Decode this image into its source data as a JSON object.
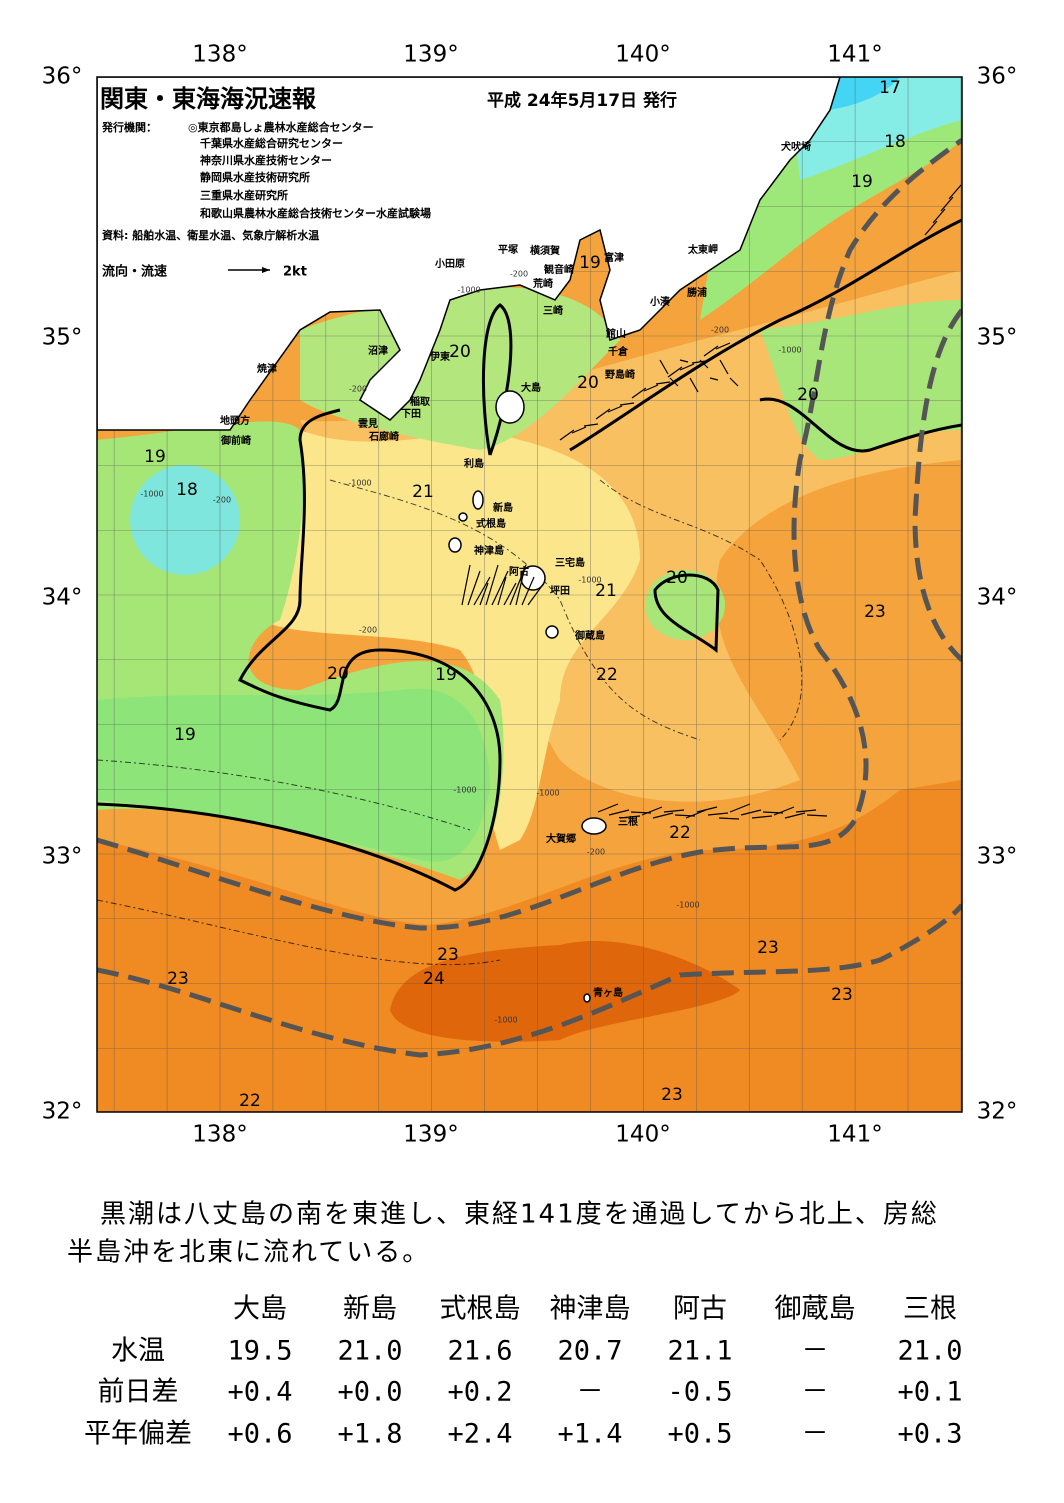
{
  "header": {
    "title": "関東・東海海況速報",
    "date": "平成 24年5月17日 発行",
    "issuer_label": "発行機関：",
    "issuers": [
      "◎東京都島しょ農林水産総合センター",
      "千葉県水産総合研究センター",
      "神奈川県水産技術センター",
      "静岡県水産技術研究所",
      "三重県水産研究所",
      "和歌山県農林水産総合技術センター水産試験場"
    ],
    "sources": "資料: 船舶水温、衛星水温、気象庁解析水温"
  },
  "legend": {
    "label": "流向・流速",
    "speed": "2kt"
  },
  "map": {
    "lon_labels": [
      "138°",
      "139°",
      "140°",
      "141°"
    ],
    "lat_labels": [
      "36°",
      "35°",
      "34°",
      "33°",
      "32°"
    ],
    "places": [
      "犬吠埼",
      "太東岬",
      "勝浦",
      "小湊",
      "富津",
      "横須賀",
      "観音崎",
      "平塚",
      "小田原",
      "荒崎",
      "三崎",
      "館山",
      "千倉",
      "野島崎",
      "沼津",
      "伊東",
      "焼津",
      "稲取",
      "下田",
      "雲見",
      "石廊崎",
      "地頭方",
      "御前崎",
      "大島",
      "利島",
      "新島",
      "式根島",
      "神津島",
      "三宅島",
      "阿古",
      "坪田",
      "御蔵島",
      "三根",
      "大賀郷",
      "青ヶ島"
    ],
    "contour_labels": [
      17,
      18,
      19,
      19,
      20,
      20,
      20,
      19,
      18,
      21,
      20,
      21,
      23,
      20,
      19,
      22,
      19,
      22,
      23,
      23,
      24,
      23,
      23,
      22,
      23
    ],
    "depth_labels": [
      -200,
      -1000,
      -200,
      -1000,
      -200,
      -1000,
      -1000,
      -200,
      -1000,
      -1000,
      -1000,
      -1000,
      -200,
      -1000,
      -200
    ]
  },
  "summary": {
    "lines": [
      "黒潮は八丈島の南を東進し、東経141度を通過してから北上、房総",
      "半島沖を北東に流れている。"
    ]
  },
  "table": {
    "columns": [
      "大島",
      "新島",
      "式根島",
      "神津島",
      "阿古",
      "御蔵島",
      "三根"
    ],
    "rows": [
      {
        "label": "水温",
        "cells": [
          "19.5",
          "21.0",
          "21.6",
          "20.7",
          "21.1",
          "－",
          "21.0"
        ]
      },
      {
        "label": "前日差",
        "cells": [
          "+0.4",
          "+0.0",
          "+0.2",
          "－",
          "-0.5",
          "－",
          "+0.1"
        ]
      },
      {
        "label": "平年偏差",
        "cells": [
          "+0.6",
          "+1.8",
          "+2.4",
          "+1.4",
          "+0.5",
          "－",
          "+0.3"
        ]
      }
    ]
  }
}
